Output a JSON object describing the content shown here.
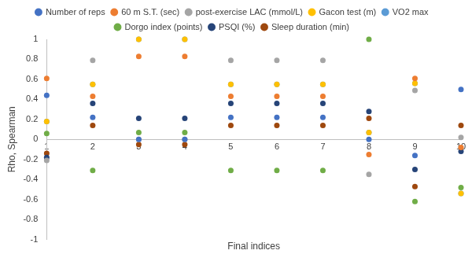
{
  "chart_data": {
    "type": "scatter",
    "x_label": "Final indices",
    "y_label": "Rho, Spearman",
    "x": [
      1,
      2,
      3,
      4,
      5,
      6,
      7,
      8,
      9,
      10
    ],
    "xlim": [
      1,
      10
    ],
    "xticks": [
      1,
      2,
      3,
      4,
      5,
      6,
      7,
      8,
      9,
      10
    ],
    "ylim": [
      -1,
      1
    ],
    "yticks": [
      -1,
      -0.8,
      -0.6,
      -0.4,
      -0.2,
      0,
      0.2,
      0.4,
      0.6,
      0.8,
      1
    ],
    "grid": false,
    "legend": "top",
    "marker": "circle",
    "series": [
      {
        "name": "Number of reps",
        "color": "#4472c4",
        "values": [
          0.44,
          0.22,
          0.0,
          0.0,
          0.22,
          0.22,
          0.22,
          0.0,
          -0.16,
          0.5
        ]
      },
      {
        "name": "60 m S.T. (sec)",
        "color": "#ed7d31",
        "values": [
          0.61,
          0.43,
          0.83,
          0.83,
          0.43,
          0.43,
          0.43,
          -0.15,
          0.61,
          -0.08
        ]
      },
      {
        "name": "post-exercise LAC (mmol/L)",
        "color": "#a5a5a5",
        "values": [
          -0.21,
          0.79,
          0.0,
          0.0,
          0.79,
          0.79,
          0.79,
          -0.35,
          0.49,
          0.02
        ]
      },
      {
        "name": "Gacon test (m)",
        "color": "#ffc000",
        "values": [
          0.18,
          0.55,
          1.0,
          1.0,
          0.55,
          0.55,
          0.55,
          0.07,
          0.56,
          -0.54
        ]
      },
      {
        "name": "VO2 max",
        "color": "#5b9bd5",
        "values": [
          0.18,
          0.55,
          1.0,
          1.0,
          0.55,
          0.55,
          0.55,
          0.07,
          0.56,
          -0.54
        ]
      },
      {
        "name": "Dorgo index (points)",
        "color": "#70ad47",
        "values": [
          0.06,
          -0.31,
          0.07,
          0.07,
          -0.31,
          -0.31,
          -0.31,
          1.0,
          -0.62,
          -0.48
        ]
      },
      {
        "name": "PSQI (%)",
        "color": "#264478",
        "values": [
          -0.18,
          0.36,
          0.21,
          0.21,
          0.36,
          0.36,
          0.36,
          0.28,
          -0.3,
          -0.12
        ]
      },
      {
        "name": "Sleep duration (min)",
        "color": "#9e480e",
        "values": [
          -0.14,
          0.14,
          -0.05,
          -0.05,
          0.14,
          0.14,
          0.14,
          0.21,
          -0.47,
          0.14
        ]
      }
    ]
  }
}
